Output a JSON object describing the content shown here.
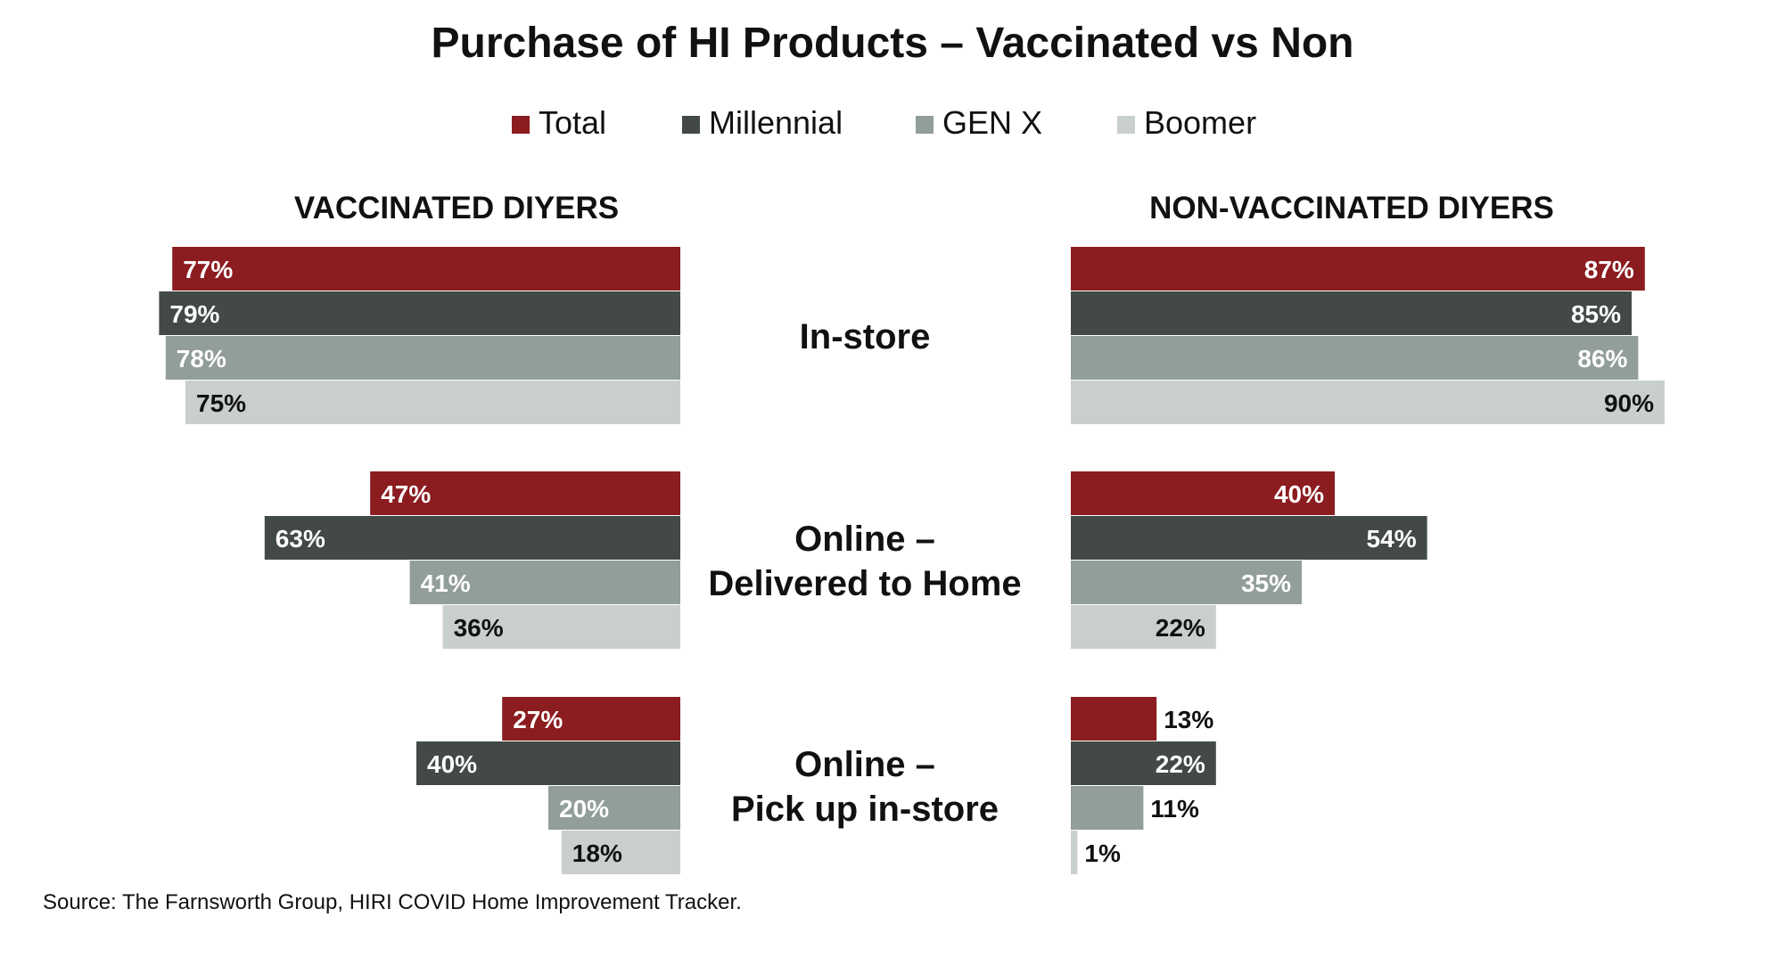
{
  "chart_data": {
    "type": "bar",
    "orientation": "horizontal",
    "title": "Purchase of HI Products – Vaccinated vs Non",
    "legend_position": "top",
    "categories": [
      "In-store",
      "Online – Delivered to Home",
      "Online – Pick up in-store"
    ],
    "category_labels": [
      [
        "In-store"
      ],
      [
        "Online –",
        "Delivered to Home"
      ],
      [
        "Online –",
        "Pick up in-store"
      ]
    ],
    "series": [
      {
        "name": "Total",
        "color": "#8B1C1F"
      },
      {
        "name": "Millennial",
        "color": "#424946"
      },
      {
        "name": "GEN X",
        "color": "#929E98"
      },
      {
        "name": "Boomer",
        "color": "#C9CFCC"
      }
    ],
    "panels": [
      {
        "title": "VACCINATED DIYERS",
        "direction": "left",
        "values": [
          [
            77,
            79,
            78,
            75
          ],
          [
            47,
            63,
            41,
            36
          ],
          [
            27,
            40,
            20,
            18
          ]
        ],
        "labels": [
          [
            "77%",
            "79%",
            "78%",
            "75%"
          ],
          [
            "47%",
            "63%",
            "41%",
            "36%"
          ],
          [
            "27%",
            "40%",
            "20%",
            "18%"
          ]
        ]
      },
      {
        "title": "NON-VACCINATED DIYERS",
        "direction": "right",
        "values": [
          [
            87,
            85,
            86,
            90
          ],
          [
            40,
            54,
            35,
            22
          ],
          [
            13,
            22,
            11,
            1
          ]
        ],
        "labels": [
          [
            "87%",
            "85%",
            "86%",
            "90%"
          ],
          [
            "40%",
            "54%",
            "35%",
            "22%"
          ],
          [
            "13%",
            "22%",
            "11%",
            "1%"
          ]
        ]
      }
    ],
    "label_text_colors": [
      "#FFFFFF",
      "#FFFFFF",
      "#FFFFFF",
      "#111111"
    ],
    "grid": false,
    "source": "Source: The Farnsworth Group, HIRI COVID Home Improvement Tracker."
  }
}
